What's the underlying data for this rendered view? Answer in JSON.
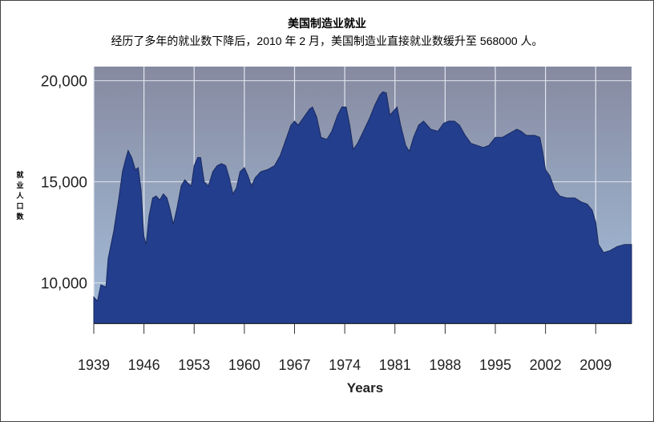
{
  "chart_data": {
    "type": "area",
    "title": "美国制造业就业",
    "subtitle": "经历了多年的就业数下降后，2010 年 2 月，美国制造业直接就业数缓升至 568000 人。",
    "xlabel": "Years",
    "ylabel": "就业人口数",
    "xlim": [
      1939,
      2014
    ],
    "ylim": [
      8000,
      20700
    ],
    "x_ticks": [
      1939,
      1946,
      1953,
      1960,
      1967,
      1974,
      1981,
      1988,
      1995,
      2002,
      2009
    ],
    "y_ticks": [
      10000,
      15000,
      20000
    ],
    "y_tick_labels": [
      "10,000",
      "15,000",
      "20,000"
    ],
    "grid": true,
    "colors": {
      "area": "#233e8c",
      "bg_top": "#868aa0",
      "bg_bottom": "#a5bfdc",
      "grid": "#e2e6ee"
    },
    "points": [
      [
        1939,
        9300
      ],
      [
        1939.5,
        9100
      ],
      [
        1940,
        9900
      ],
      [
        1940.7,
        9800
      ],
      [
        1941,
        11200
      ],
      [
        1941.8,
        12600
      ],
      [
        1942.5,
        14200
      ],
      [
        1943,
        15500
      ],
      [
        1943.5,
        16200
      ],
      [
        1943.8,
        16550
      ],
      [
        1944.3,
        16200
      ],
      [
        1944.8,
        15600
      ],
      [
        1945.2,
        15700
      ],
      [
        1945.6,
        14600
      ],
      [
        1946,
        12300
      ],
      [
        1946.3,
        11900
      ],
      [
        1946.7,
        13300
      ],
      [
        1947.2,
        14200
      ],
      [
        1947.7,
        14300
      ],
      [
        1948.2,
        14100
      ],
      [
        1948.7,
        14400
      ],
      [
        1949.2,
        14200
      ],
      [
        1949.6,
        13700
      ],
      [
        1950.1,
        12900
      ],
      [
        1950.6,
        13700
      ],
      [
        1951.2,
        14800
      ],
      [
        1951.7,
        15100
      ],
      [
        1952.2,
        14900
      ],
      [
        1952.6,
        14800
      ],
      [
        1953,
        15800
      ],
      [
        1953.5,
        16200
      ],
      [
        1953.9,
        16200
      ],
      [
        1954.4,
        15000
      ],
      [
        1955,
        14800
      ],
      [
        1955.6,
        15500
      ],
      [
        1956.2,
        15800
      ],
      [
        1956.8,
        15900
      ],
      [
        1957.4,
        15800
      ],
      [
        1957.9,
        15200
      ],
      [
        1958.4,
        14400
      ],
      [
        1958.9,
        14700
      ],
      [
        1959.4,
        15500
      ],
      [
        1960,
        15700
      ],
      [
        1960.5,
        15300
      ],
      [
        1961,
        14800
      ],
      [
        1961.5,
        15200
      ],
      [
        1962.3,
        15500
      ],
      [
        1963.2,
        15600
      ],
      [
        1964.2,
        15800
      ],
      [
        1965,
        16300
      ],
      [
        1965.7,
        17000
      ],
      [
        1966.5,
        17800
      ],
      [
        1967,
        18000
      ],
      [
        1967.5,
        17800
      ],
      [
        1968.3,
        18200
      ],
      [
        1969.1,
        18600
      ],
      [
        1969.5,
        18700
      ],
      [
        1970.1,
        18200
      ],
      [
        1970.7,
        17200
      ],
      [
        1971.5,
        17100
      ],
      [
        1972.2,
        17500
      ],
      [
        1973,
        18300
      ],
      [
        1973.6,
        18700
      ],
      [
        1974.2,
        18700
      ],
      [
        1974.7,
        17800
      ],
      [
        1975.2,
        16600
      ],
      [
        1975.8,
        16900
      ],
      [
        1976.6,
        17500
      ],
      [
        1977.4,
        18100
      ],
      [
        1978.2,
        18800
      ],
      [
        1978.9,
        19300
      ],
      [
        1979.3,
        19450
      ],
      [
        1979.8,
        19400
      ],
      [
        1980.3,
        18300
      ],
      [
        1980.8,
        18500
      ],
      [
        1981.3,
        18700
      ],
      [
        1981.8,
        17800
      ],
      [
        1982.5,
        16800
      ],
      [
        1983,
        16500
      ],
      [
        1983.6,
        17200
      ],
      [
        1984.3,
        17800
      ],
      [
        1985,
        18000
      ],
      [
        1986,
        17600
      ],
      [
        1987,
        17500
      ],
      [
        1987.8,
        17900
      ],
      [
        1988.5,
        18000
      ],
      [
        1989.3,
        18000
      ],
      [
        1990,
        17800
      ],
      [
        1990.8,
        17300
      ],
      [
        1991.6,
        16900
      ],
      [
        1992.5,
        16800
      ],
      [
        1993.3,
        16700
      ],
      [
        1994.1,
        16800
      ],
      [
        1995,
        17200
      ],
      [
        1996,
        17200
      ],
      [
        1997,
        17400
      ],
      [
        1998,
        17600
      ],
      [
        1998.6,
        17500
      ],
      [
        1999.3,
        17300
      ],
      [
        2000.5,
        17300
      ],
      [
        2001.2,
        17200
      ],
      [
        2001.6,
        16500
      ],
      [
        2002,
        15600
      ],
      [
        2002.6,
        15300
      ],
      [
        2003.3,
        14600
      ],
      [
        2004,
        14300
      ],
      [
        2005,
        14200
      ],
      [
        2006.1,
        14200
      ],
      [
        2007,
        14000
      ],
      [
        2007.8,
        13900
      ],
      [
        2008.5,
        13600
      ],
      [
        2009,
        13000
      ],
      [
        2009.4,
        11900
      ],
      [
        2010.1,
        11500
      ],
      [
        2011,
        11600
      ],
      [
        2012,
        11800
      ],
      [
        2013,
        11900
      ],
      [
        2014,
        11900
      ]
    ]
  }
}
